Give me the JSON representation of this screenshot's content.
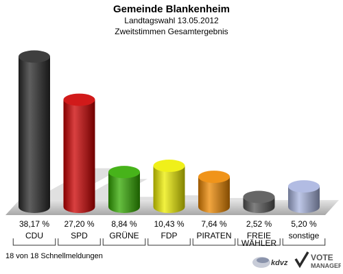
{
  "header": {
    "title": "Gemeinde Blankenheim",
    "subtitle": "Landtagswahl 13.05.2012",
    "subtitle2": "Zweitstimmen Gesamtergebnis"
  },
  "chart_data": {
    "type": "bar",
    "title": "Gemeinde Blankenheim",
    "subtitle": "Landtagswahl 13.05.2012 / Zweitstimmen Gesamtergebnis",
    "categories": [
      "CDU",
      "SPD",
      "GRÜNE",
      "FDP",
      "PIRATEN",
      "FREIE WÄHLER",
      "sonstige"
    ],
    "values": [
      38.17,
      27.2,
      8.84,
      10.43,
      7.64,
      2.52,
      5.2
    ],
    "value_labels": [
      "38,17 %",
      "27,20 %",
      "8,84 %",
      "10,43 %",
      "7,64 %",
      "2,52 %",
      "5,20 %"
    ],
    "category_labels": [
      [
        "CDU"
      ],
      [
        "SPD"
      ],
      [
        "GRÜNE"
      ],
      [
        "FDP"
      ],
      [
        "PIRATEN"
      ],
      [
        "FREIE",
        "WÄHLER"
      ],
      [
        "sonstige"
      ]
    ],
    "colors": [
      "#2a2a2a",
      "#cc0000",
      "#33aa00",
      "#eeee00",
      "#ee8800",
      "#555555",
      "#a9b5e0"
    ],
    "ylim": [
      0,
      40
    ],
    "xlabel": "",
    "ylabel": "",
    "grid": false,
    "legend": "none"
  },
  "footer": {
    "status": "18 von 18 Schnellmeldungen",
    "logo_text_left": "kdvz",
    "logo_text_vote": "VOTE",
    "logo_text_manager": "MANAGER"
  }
}
